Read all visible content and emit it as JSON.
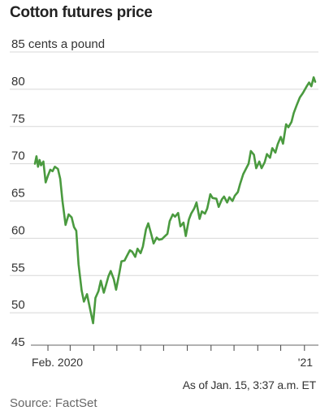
{
  "title": "Cotton futures price",
  "note": "As of Jan. 15, 3:37 a.m. ET",
  "source": "Source: FactSet",
  "chart_data": {
    "type": "line",
    "title": "Cotton futures price",
    "ylabel": "cents a pound",
    "ylim": [
      45,
      85
    ],
    "y_ticks": [
      45,
      50,
      55,
      60,
      65,
      70,
      75,
      80,
      85
    ],
    "y_tick_labels": [
      "45",
      "50",
      "55",
      "60",
      "65",
      "70",
      "75",
      "80",
      "85 cents a pound"
    ],
    "x_tick_labels": [
      "Feb. 2020",
      "'21"
    ],
    "xlim": [
      "2020-01-15",
      "2021-01-15"
    ],
    "month_ticks": [
      "2020-02-01",
      "2020-03-01",
      "2020-04-01",
      "2020-05-01",
      "2020-06-01",
      "2020-07-01",
      "2020-08-01",
      "2020-09-01",
      "2020-10-01",
      "2020-11-01",
      "2020-12-01",
      "2021-01-01"
    ],
    "grid": true,
    "color": "#4a9a3f",
    "series": [
      {
        "x": [
          "2020-01-15",
          "2020-01-17",
          "2020-01-19",
          "2020-01-21",
          "2020-01-23",
          "2020-01-26",
          "2020-01-29",
          "2020-02-01",
          "2020-02-04",
          "2020-02-07",
          "2020-02-10",
          "2020-02-14",
          "2020-02-17",
          "2020-02-20",
          "2020-02-24",
          "2020-02-28",
          "2020-03-03",
          "2020-03-06",
          "2020-03-09",
          "2020-03-12",
          "2020-03-16",
          "2020-03-19",
          "2020-03-23",
          "2020-03-27",
          "2020-03-31",
          "2020-04-03",
          "2020-04-07",
          "2020-04-10",
          "2020-04-14",
          "2020-04-17",
          "2020-04-20",
          "2020-04-23",
          "2020-04-27",
          "2020-04-30",
          "2020-05-04",
          "2020-05-07",
          "2020-05-11",
          "2020-05-14",
          "2020-05-18",
          "2020-05-21",
          "2020-05-25",
          "2020-05-28",
          "2020-06-01",
          "2020-06-04",
          "2020-06-08",
          "2020-06-11",
          "2020-06-15",
          "2020-06-18",
          "2020-06-22",
          "2020-06-25",
          "2020-06-29",
          "2020-07-02",
          "2020-07-06",
          "2020-07-09",
          "2020-07-13",
          "2020-07-16",
          "2020-07-20",
          "2020-07-23",
          "2020-07-27",
          "2020-07-30",
          "2020-08-03",
          "2020-08-06",
          "2020-08-10",
          "2020-08-13",
          "2020-08-17",
          "2020-08-20",
          "2020-08-24",
          "2020-08-27",
          "2020-08-31",
          "2020-09-03",
          "2020-09-08",
          "2020-09-11",
          "2020-09-15",
          "2020-09-18",
          "2020-09-22",
          "2020-09-25",
          "2020-09-29",
          "2020-10-02",
          "2020-10-06",
          "2020-10-09",
          "2020-10-13",
          "2020-10-16",
          "2020-10-20",
          "2020-10-23",
          "2020-10-27",
          "2020-10-30",
          "2020-11-03",
          "2020-11-06",
          "2020-11-10",
          "2020-11-13",
          "2020-11-17",
          "2020-11-20",
          "2020-11-24",
          "2020-11-27",
          "2020-12-01",
          "2020-12-04",
          "2020-12-08",
          "2020-12-11",
          "2020-12-15",
          "2020-12-18",
          "2020-12-22",
          "2020-12-26",
          "2020-12-30",
          "2021-01-04",
          "2021-01-07",
          "2021-01-10",
          "2021-01-13",
          "2021-01-15"
        ],
        "y": [
          70.0,
          71.0,
          69.6,
          70.5,
          69.8,
          70.3,
          67.5,
          68.4,
          69.2,
          69.0,
          69.6,
          69.3,
          68.0,
          65.0,
          61.8,
          63.2,
          62.8,
          61.5,
          61.0,
          56.5,
          53.0,
          51.5,
          52.5,
          50.5,
          48.6,
          52.0,
          52.9,
          54.3,
          52.7,
          53.8,
          54.9,
          55.6,
          54.5,
          53.1,
          55.2,
          56.9,
          57.0,
          57.6,
          58.4,
          58.2,
          57.5,
          58.6,
          58.0,
          58.9,
          61.2,
          62.0,
          60.5,
          59.3,
          60.1,
          59.8,
          59.9,
          60.2,
          60.6,
          62.3,
          63.2,
          62.9,
          63.4,
          61.6,
          62.1,
          60.3,
          62.5,
          63.3,
          64.0,
          64.8,
          62.6,
          63.6,
          63.3,
          64.0,
          65.9,
          65.4,
          65.3,
          64.2,
          65.2,
          65.6,
          64.8,
          65.5,
          65.0,
          65.7,
          66.2,
          67.3,
          68.6,
          69.2,
          70.0,
          71.7,
          71.2,
          69.4,
          70.3,
          69.4,
          70.2,
          71.3,
          70.8,
          72.1,
          71.5,
          72.6,
          73.6,
          72.7,
          75.3,
          74.9,
          75.6,
          76.8,
          77.9,
          78.9,
          79.5,
          80.4,
          80.9,
          80.4,
          81.6,
          81.0
        ]
      }
    ]
  }
}
